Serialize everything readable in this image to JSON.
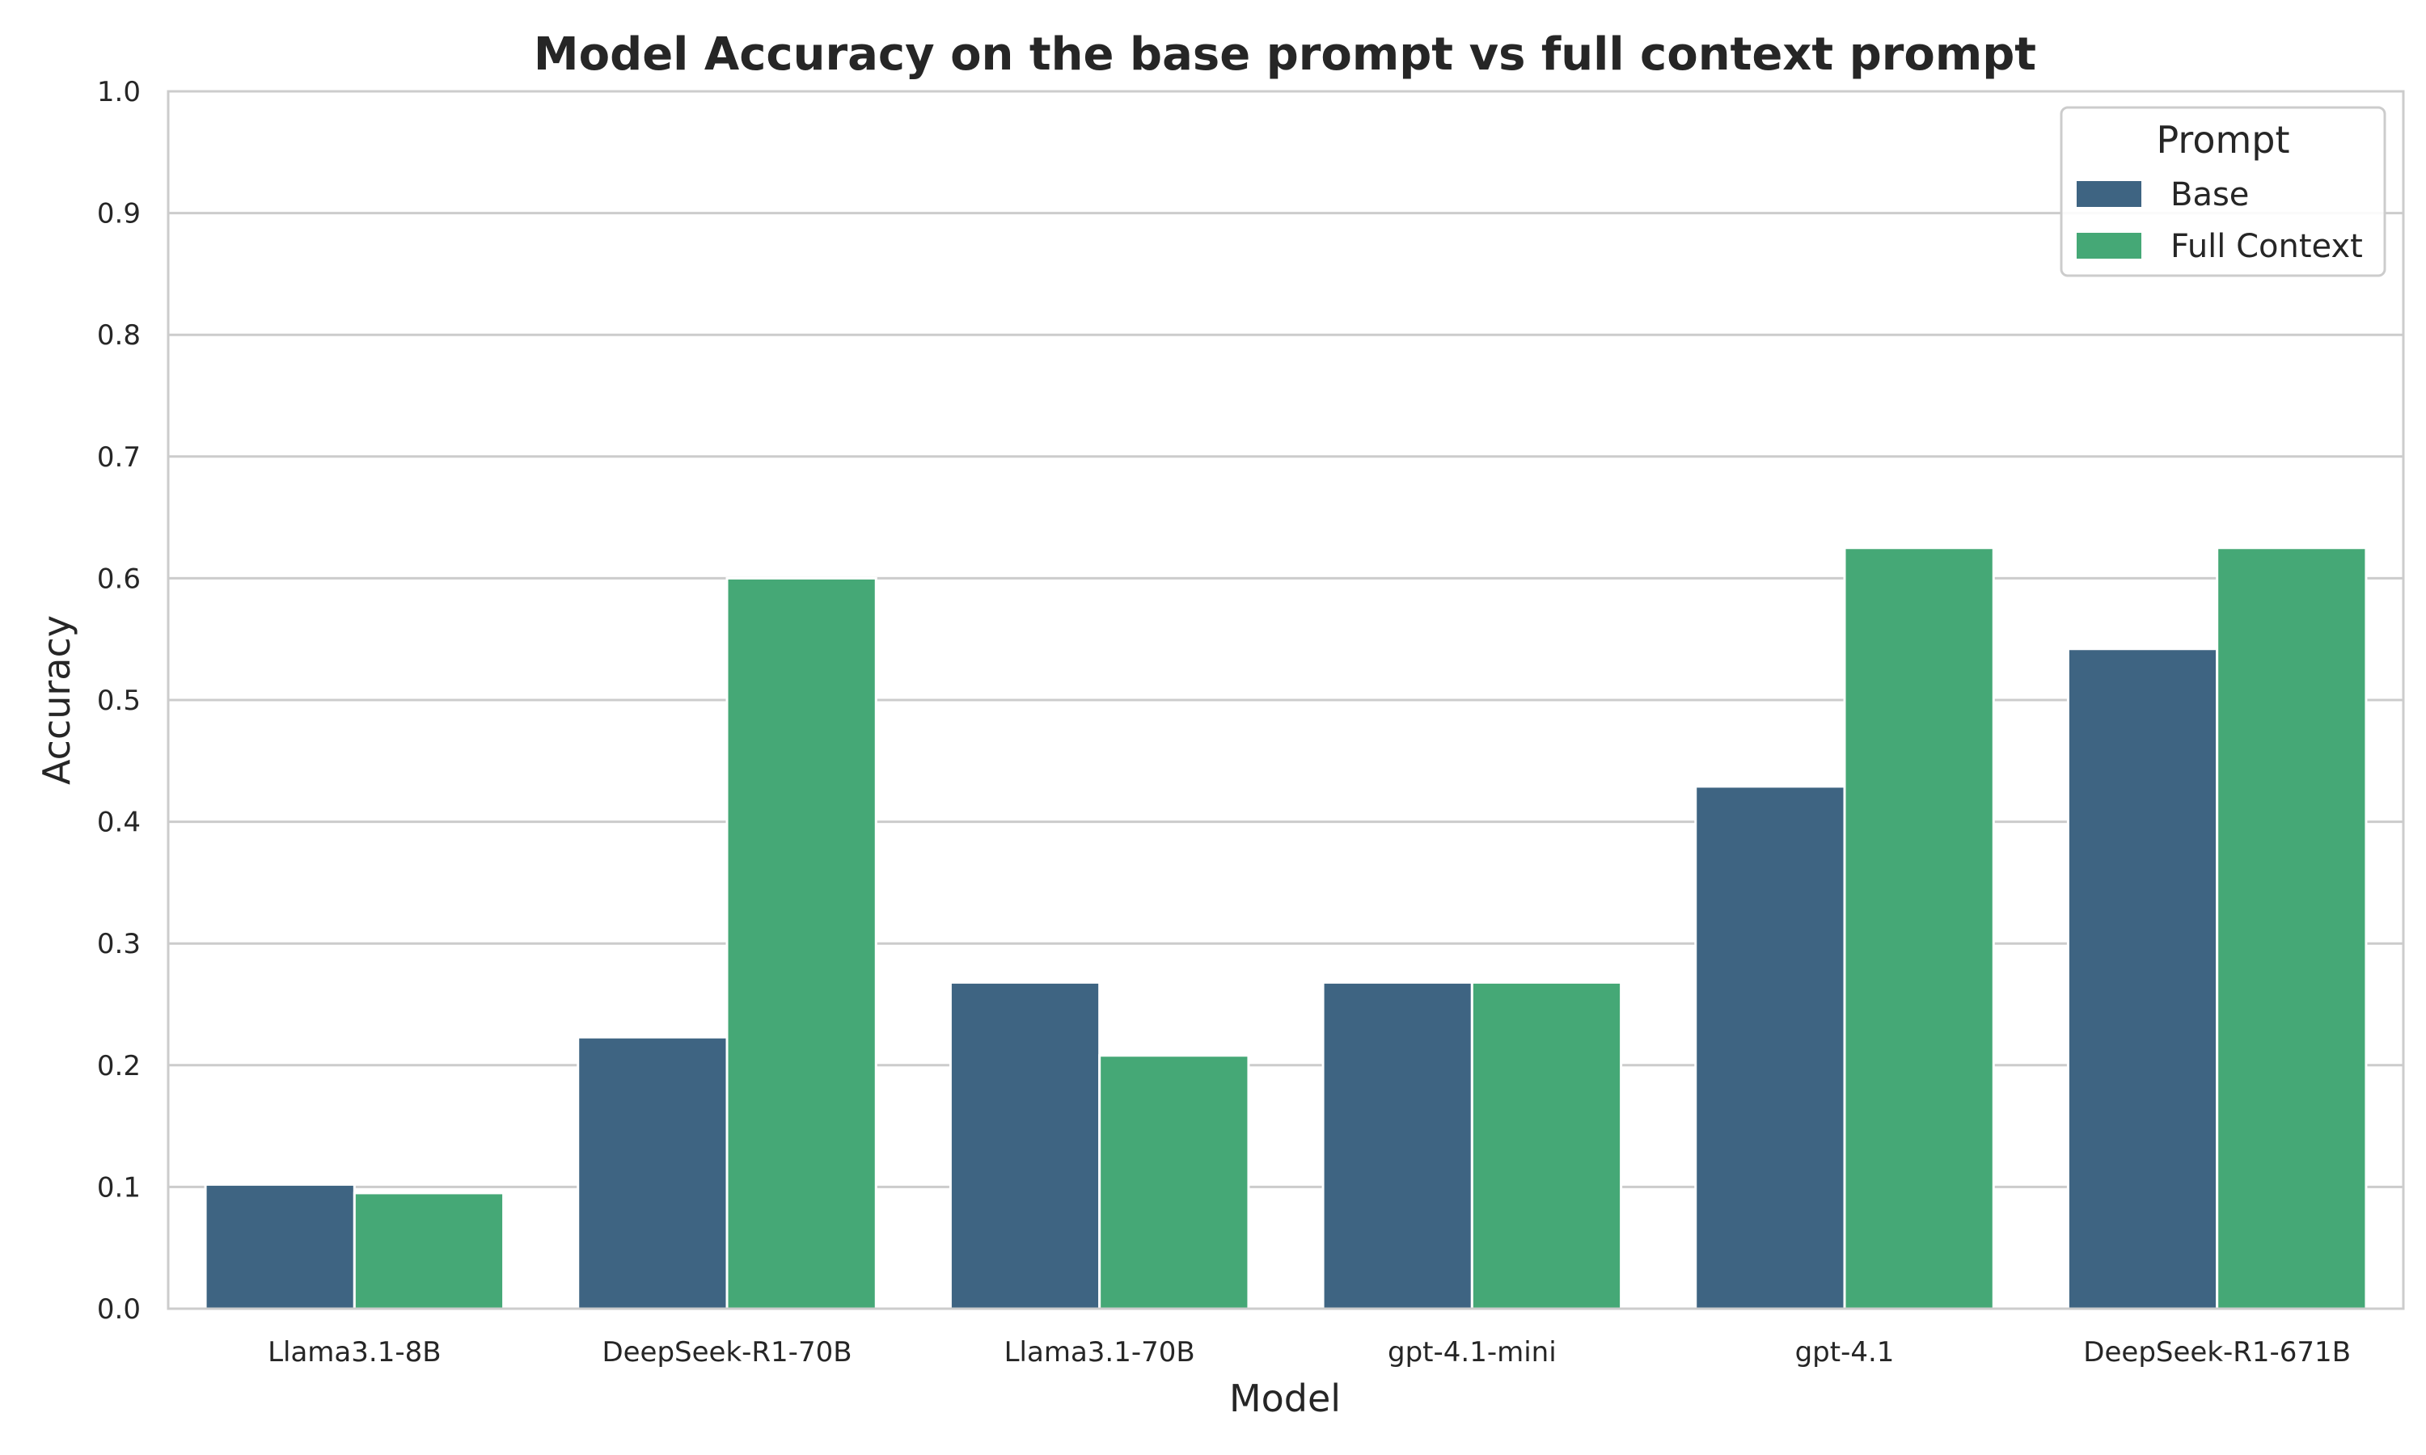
{
  "chart_data": {
    "type": "bar",
    "title": "Model Accuracy on the base prompt vs full context prompt",
    "xlabel": "Model",
    "ylabel": "Accuracy",
    "ylim": [
      0,
      1.0
    ],
    "yticks": [
      "0.0",
      "0.1",
      "0.2",
      "0.3",
      "0.4",
      "0.5",
      "0.6",
      "0.7",
      "0.8",
      "0.9",
      "1.0"
    ],
    "grid": "horizontal",
    "categories": [
      "Llama3.1-8B",
      "DeepSeek-R1-70B",
      "Llama3.1-70B",
      "gpt-4.1-mini",
      "gpt-4.1",
      "DeepSeek-R1-671B"
    ],
    "series": [
      {
        "name": "Base",
        "color": "#3e6482",
        "values": [
          0.102,
          0.223,
          0.268,
          0.268,
          0.429,
          0.542
        ]
      },
      {
        "name": "Full Context",
        "color": "#45a876",
        "values": [
          0.095,
          0.6,
          0.208,
          0.268,
          0.625,
          0.625
        ]
      }
    ],
    "legend": {
      "title": "Prompt",
      "placement": "top-right"
    }
  }
}
